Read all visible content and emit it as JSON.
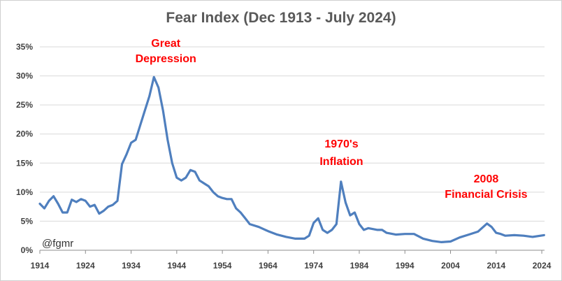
{
  "chart_data": {
    "type": "line",
    "title": "Fear Index (Dec 1913 - July 2024)",
    "xlabel": "",
    "ylabel": "",
    "xlim": [
      1914,
      2024.6
    ],
    "ylim": [
      0,
      35
    ],
    "x_ticks": [
      "1914",
      "1924",
      "1934",
      "1944",
      "1954",
      "1964",
      "1974",
      "1984",
      "1994",
      "2004",
      "2014",
      "2024"
    ],
    "y_ticks": [
      "0%",
      "5%",
      "10%",
      "15%",
      "20%",
      "25%",
      "30%",
      "35%"
    ],
    "grid": true,
    "series": [
      {
        "name": "",
        "color": "#4f7fbe",
        "x": [
          1914,
          1915,
          1916,
          1917,
          1918,
          1919,
          1920,
          1921,
          1922,
          1923,
          1924,
          1925,
          1926,
          1927,
          1928,
          1929,
          1930,
          1931,
          1932,
          1933,
          1934,
          1935,
          1936,
          1937,
          1938,
          1939,
          1940,
          1941,
          1942,
          1943,
          1944,
          1945,
          1946,
          1947,
          1948,
          1949,
          1950,
          1951,
          1952,
          1953,
          1954,
          1955,
          1956,
          1957,
          1958,
          1959,
          1960,
          1962,
          1964,
          1966,
          1968,
          1970,
          1972,
          1973,
          1974,
          1975,
          1976,
          1977,
          1978,
          1979,
          1980,
          1981,
          1982,
          1983,
          1984,
          1985,
          1986,
          1988,
          1989,
          1990,
          1992,
          1994,
          1996,
          1998,
          2000,
          2002,
          2004,
          2006,
          2008,
          2010,
          2012,
          2013,
          2014,
          2015,
          2016,
          2018,
          2020,
          2022,
          2024.5
        ],
        "values": [
          8.0,
          7.2,
          8.5,
          9.3,
          8.0,
          6.5,
          6.5,
          8.7,
          8.3,
          8.8,
          8.5,
          7.5,
          7.8,
          6.3,
          6.8,
          7.5,
          7.8,
          8.5,
          14.8,
          16.5,
          18.5,
          19.0,
          21.5,
          24.0,
          26.5,
          29.8,
          28.0,
          24.0,
          19.0,
          15.0,
          12.5,
          12.0,
          12.5,
          13.8,
          13.5,
          12.0,
          11.5,
          11.0,
          10.0,
          9.3,
          9.0,
          8.8,
          8.8,
          7.2,
          6.5,
          5.5,
          4.5,
          4.0,
          3.3,
          2.7,
          2.3,
          2.0,
          2.0,
          2.5,
          4.7,
          5.5,
          3.5,
          3.0,
          3.5,
          4.5,
          11.8,
          8.2,
          6.0,
          6.5,
          4.5,
          3.5,
          3.8,
          3.5,
          3.5,
          3.0,
          2.7,
          2.8,
          2.8,
          2.0,
          1.6,
          1.4,
          1.5,
          2.2,
          2.7,
          3.2,
          4.6,
          4.0,
          3.0,
          2.8,
          2.5,
          2.6,
          2.5,
          2.3,
          2.6
        ]
      }
    ],
    "annotations": [
      {
        "lines": [
          "Great",
          "Depression"
        ],
        "x": 1941.6,
        "y": 29.8
      },
      {
        "lines": [
          "1970's",
          "Inflation"
        ],
        "x": 1980.4,
        "y": 11.8
      },
      {
        "lines": [
          "2008",
          "Financial Crisis"
        ],
        "x": 2011.8,
        "y": 4.6
      }
    ],
    "credit": "@fgmr"
  }
}
